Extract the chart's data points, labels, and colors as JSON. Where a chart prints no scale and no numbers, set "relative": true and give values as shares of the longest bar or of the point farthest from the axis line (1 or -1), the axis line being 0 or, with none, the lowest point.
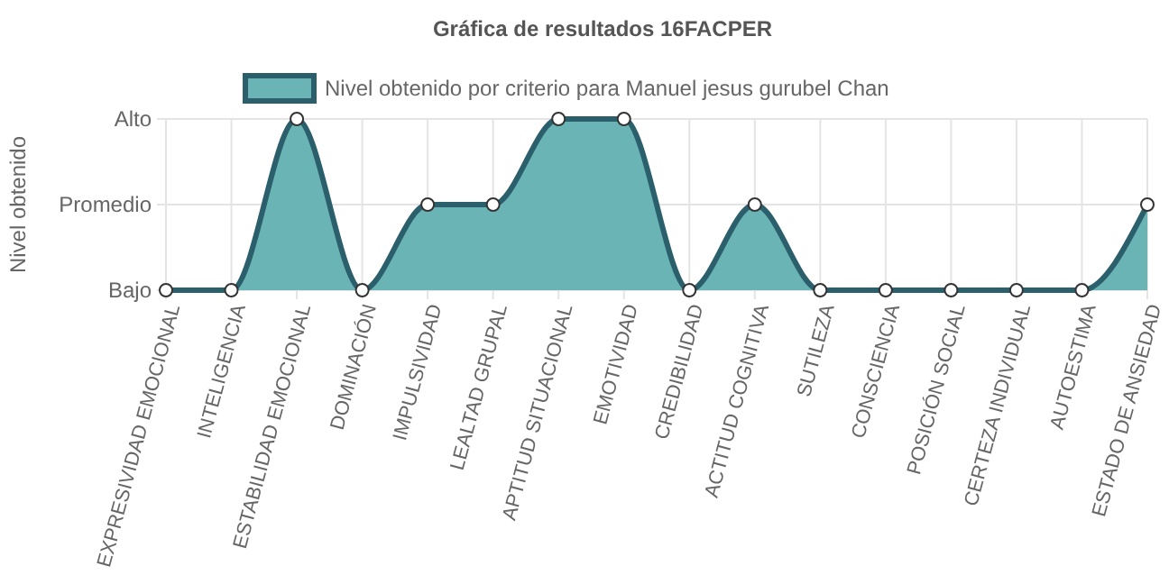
{
  "chart_data": {
    "type": "area",
    "title": "Gráfica de resultados 16FACPER",
    "ylabel": "Nivel obtenido",
    "categories": [
      "EXPRESIVIDAD EMOCIONAL",
      "INTELIGENCIA",
      "ESTABILIDAD EMOCIONAL",
      "DOMINACIÓN",
      "IMPULSIVIDAD",
      "LEALTAD GRUPAL",
      "APTITUD SITUACIONAL",
      "EMOTIVIDAD",
      "CREDIBILIDAD",
      "ACTITUD COGNITIVA",
      "SUTILEZA",
      "CONSCIENCIA",
      "POSICIÓN SOCIAL",
      "CERTEZA INDIVIDUAL",
      "AUTOESTIMA",
      "ESTADO DE ANSIEDAD"
    ],
    "y_categories": [
      "Alto",
      "Promedio",
      "Bajo"
    ],
    "relative": true,
    "series": [
      {
        "name": "Nivel obtenido por criterio para Manuel jesus gurubel Chan",
        "color": "#2b5f6b",
        "values": [
          0,
          0,
          1,
          0,
          0.5,
          0.5,
          1,
          1,
          0,
          0.5,
          0,
          0,
          0,
          0,
          0,
          0.5
        ]
      }
    ],
    "grid": true,
    "legend": "top",
    "marker": "circle"
  }
}
